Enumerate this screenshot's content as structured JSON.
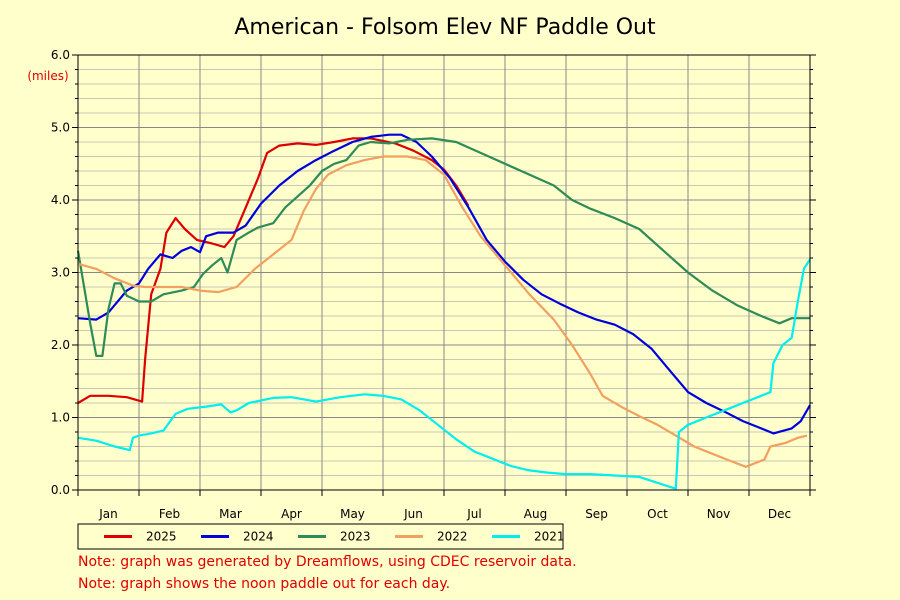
{
  "colors": {
    "background": "#ffffcc",
    "grid": "#999999",
    "note": "#e00000",
    "unit": "#e00000"
  },
  "chart_data": {
    "type": "line",
    "title": "American - Folsom Elev NF Paddle Out",
    "y_unit": "(miles)",
    "ylim": [
      0,
      6
    ],
    "y_ticks": [
      "0.0",
      "1.0",
      "2.0",
      "3.0",
      "4.0",
      "5.0",
      "6.0"
    ],
    "xlim": [
      0,
      12
    ],
    "x_ticks": [
      "Jan",
      "Feb",
      "Mar",
      "Apr",
      "May",
      "Jun",
      "Jul",
      "Aug",
      "Sep",
      "Oct",
      "Nov",
      "Dec"
    ],
    "x_unit": "month (0 = Jan 1, 12 = Dec 31)",
    "grid": true,
    "legend_position": "bottom",
    "series": [
      {
        "name": "2025",
        "color": "#dd0000",
        "points": [
          [
            0,
            1.2
          ],
          [
            0.2,
            1.3
          ],
          [
            0.5,
            1.3
          ],
          [
            0.8,
            1.28
          ],
          [
            1.05,
            1.22
          ],
          [
            1.1,
            1.8
          ],
          [
            1.2,
            2.7
          ],
          [
            1.35,
            3.05
          ],
          [
            1.45,
            3.55
          ],
          [
            1.6,
            3.75
          ],
          [
            1.75,
            3.6
          ],
          [
            1.95,
            3.45
          ],
          [
            2.2,
            3.4
          ],
          [
            2.4,
            3.35
          ],
          [
            2.55,
            3.5
          ],
          [
            2.75,
            3.9
          ],
          [
            2.95,
            4.3
          ],
          [
            3.1,
            4.65
          ],
          [
            3.3,
            4.75
          ],
          [
            3.6,
            4.78
          ],
          [
            3.9,
            4.76
          ],
          [
            4.2,
            4.8
          ],
          [
            4.5,
            4.85
          ],
          [
            4.8,
            4.85
          ],
          [
            5.2,
            4.78
          ],
          [
            5.5,
            4.68
          ],
          [
            5.8,
            4.55
          ],
          [
            6.0,
            4.42
          ],
          [
            6.2,
            4.2
          ],
          [
            6.4,
            3.92
          ]
        ]
      },
      {
        "name": "2024",
        "color": "#0000dd",
        "points": [
          [
            0,
            2.37
          ],
          [
            0.3,
            2.35
          ],
          [
            0.5,
            2.45
          ],
          [
            0.8,
            2.75
          ],
          [
            1.0,
            2.85
          ],
          [
            1.15,
            3.05
          ],
          [
            1.35,
            3.25
          ],
          [
            1.55,
            3.2
          ],
          [
            1.7,
            3.3
          ],
          [
            1.85,
            3.35
          ],
          [
            2.0,
            3.28
          ],
          [
            2.1,
            3.5
          ],
          [
            2.3,
            3.55
          ],
          [
            2.55,
            3.55
          ],
          [
            2.75,
            3.65
          ],
          [
            3.0,
            3.95
          ],
          [
            3.3,
            4.2
          ],
          [
            3.6,
            4.4
          ],
          [
            3.9,
            4.55
          ],
          [
            4.2,
            4.68
          ],
          [
            4.5,
            4.8
          ],
          [
            4.8,
            4.87
          ],
          [
            5.1,
            4.9
          ],
          [
            5.3,
            4.9
          ],
          [
            5.55,
            4.8
          ],
          [
            5.8,
            4.6
          ],
          [
            6.1,
            4.3
          ],
          [
            6.4,
            3.9
          ],
          [
            6.7,
            3.45
          ],
          [
            7.0,
            3.15
          ],
          [
            7.3,
            2.9
          ],
          [
            7.6,
            2.7
          ],
          [
            7.9,
            2.57
          ],
          [
            8.2,
            2.45
          ],
          [
            8.5,
            2.35
          ],
          [
            8.8,
            2.28
          ],
          [
            9.1,
            2.15
          ],
          [
            9.4,
            1.95
          ],
          [
            9.7,
            1.65
          ],
          [
            10.0,
            1.35
          ],
          [
            10.3,
            1.2
          ],
          [
            10.6,
            1.08
          ],
          [
            10.9,
            0.95
          ],
          [
            11.2,
            0.85
          ],
          [
            11.4,
            0.78
          ],
          [
            11.7,
            0.85
          ],
          [
            11.85,
            0.95
          ],
          [
            12,
            1.17
          ]
        ]
      },
      {
        "name": "2023",
        "color": "#2e8b57",
        "points": [
          [
            0,
            3.3
          ],
          [
            0.1,
            2.8
          ],
          [
            0.2,
            2.3
          ],
          [
            0.3,
            1.85
          ],
          [
            0.4,
            1.85
          ],
          [
            0.5,
            2.5
          ],
          [
            0.6,
            2.85
          ],
          [
            0.7,
            2.85
          ],
          [
            0.8,
            2.68
          ],
          [
            1.0,
            2.6
          ],
          [
            1.2,
            2.6
          ],
          [
            1.4,
            2.7
          ],
          [
            1.7,
            2.75
          ],
          [
            1.9,
            2.8
          ],
          [
            2.05,
            2.98
          ],
          [
            2.2,
            3.1
          ],
          [
            2.35,
            3.2
          ],
          [
            2.45,
            3.0
          ],
          [
            2.6,
            3.45
          ],
          [
            2.8,
            3.55
          ],
          [
            2.95,
            3.62
          ],
          [
            3.2,
            3.68
          ],
          [
            3.4,
            3.9
          ],
          [
            3.6,
            4.05
          ],
          [
            3.8,
            4.2
          ],
          [
            4.0,
            4.4
          ],
          [
            4.2,
            4.5
          ],
          [
            4.4,
            4.55
          ],
          [
            4.6,
            4.75
          ],
          [
            4.8,
            4.8
          ],
          [
            5.1,
            4.78
          ],
          [
            5.4,
            4.83
          ],
          [
            5.8,
            4.85
          ],
          [
            6.2,
            4.8
          ],
          [
            6.6,
            4.65
          ],
          [
            7.0,
            4.5
          ],
          [
            7.4,
            4.35
          ],
          [
            7.8,
            4.2
          ],
          [
            8.1,
            4.0
          ],
          [
            8.4,
            3.88
          ],
          [
            8.8,
            3.75
          ],
          [
            9.2,
            3.6
          ],
          [
            9.6,
            3.3
          ],
          [
            10.0,
            3.0
          ],
          [
            10.4,
            2.75
          ],
          [
            10.8,
            2.55
          ],
          [
            11.2,
            2.4
          ],
          [
            11.5,
            2.3
          ],
          [
            11.7,
            2.37
          ],
          [
            12,
            2.37
          ]
        ]
      },
      {
        "name": "2022",
        "color": "#f0a060",
        "points": [
          [
            0,
            3.12
          ],
          [
            0.3,
            3.05
          ],
          [
            0.6,
            2.92
          ],
          [
            0.9,
            2.82
          ],
          [
            1.1,
            2.8
          ],
          [
            1.4,
            2.8
          ],
          [
            1.7,
            2.8
          ],
          [
            2.0,
            2.75
          ],
          [
            2.3,
            2.73
          ],
          [
            2.6,
            2.8
          ],
          [
            2.9,
            3.05
          ],
          [
            3.2,
            3.25
          ],
          [
            3.5,
            3.45
          ],
          [
            3.7,
            3.85
          ],
          [
            3.9,
            4.15
          ],
          [
            4.1,
            4.35
          ],
          [
            4.4,
            4.48
          ],
          [
            4.7,
            4.55
          ],
          [
            5.0,
            4.6
          ],
          [
            5.4,
            4.6
          ],
          [
            5.7,
            4.55
          ],
          [
            6.0,
            4.35
          ],
          [
            6.3,
            3.9
          ],
          [
            6.6,
            3.5
          ],
          [
            7.0,
            3.1
          ],
          [
            7.4,
            2.7
          ],
          [
            7.8,
            2.35
          ],
          [
            8.1,
            2.0
          ],
          [
            8.4,
            1.6
          ],
          [
            8.6,
            1.3
          ],
          [
            8.9,
            1.15
          ],
          [
            9.2,
            1.02
          ],
          [
            9.5,
            0.9
          ],
          [
            9.8,
            0.75
          ],
          [
            10.1,
            0.6
          ],
          [
            10.4,
            0.5
          ],
          [
            10.7,
            0.4
          ],
          [
            10.95,
            0.32
          ],
          [
            11.1,
            0.37
          ],
          [
            11.25,
            0.42
          ],
          [
            11.35,
            0.6
          ],
          [
            11.6,
            0.65
          ],
          [
            11.8,
            0.72
          ],
          [
            11.95,
            0.75
          ]
        ]
      },
      {
        "name": "2021",
        "color": "#00eeee",
        "points": [
          [
            0,
            0.72
          ],
          [
            0.3,
            0.68
          ],
          [
            0.6,
            0.6
          ],
          [
            0.85,
            0.55
          ],
          [
            0.9,
            0.72
          ],
          [
            1.0,
            0.75
          ],
          [
            1.2,
            0.78
          ],
          [
            1.4,
            0.82
          ],
          [
            1.6,
            1.05
          ],
          [
            1.8,
            1.12
          ],
          [
            2.1,
            1.15
          ],
          [
            2.35,
            1.18
          ],
          [
            2.5,
            1.07
          ],
          [
            2.6,
            1.1
          ],
          [
            2.8,
            1.2
          ],
          [
            3.2,
            1.27
          ],
          [
            3.5,
            1.28
          ],
          [
            3.9,
            1.22
          ],
          [
            4.3,
            1.28
          ],
          [
            4.7,
            1.32
          ],
          [
            5.0,
            1.3
          ],
          [
            5.3,
            1.25
          ],
          [
            5.6,
            1.1
          ],
          [
            5.9,
            0.9
          ],
          [
            6.2,
            0.7
          ],
          [
            6.5,
            0.53
          ],
          [
            6.8,
            0.43
          ],
          [
            7.1,
            0.33
          ],
          [
            7.4,
            0.27
          ],
          [
            7.7,
            0.24
          ],
          [
            8.0,
            0.22
          ],
          [
            8.4,
            0.22
          ],
          [
            8.8,
            0.2
          ],
          [
            9.2,
            0.18
          ],
          [
            9.5,
            0.1
          ],
          [
            9.75,
            0.03
          ],
          [
            9.8,
            0.02
          ],
          [
            9.85,
            0.8
          ],
          [
            10.0,
            0.9
          ],
          [
            10.3,
            1.0
          ],
          [
            10.6,
            1.1
          ],
          [
            10.9,
            1.2
          ],
          [
            11.2,
            1.3
          ],
          [
            11.35,
            1.35
          ],
          [
            11.4,
            1.75
          ],
          [
            11.55,
            2.0
          ],
          [
            11.7,
            2.1
          ],
          [
            11.8,
            2.6
          ],
          [
            11.9,
            3.05
          ],
          [
            12,
            3.18
          ]
        ]
      }
    ]
  },
  "notes": [
    "Note: graph was generated by Dreamflows, using CDEC reservoir data.",
    "Note: graph shows the noon paddle out for each day."
  ]
}
